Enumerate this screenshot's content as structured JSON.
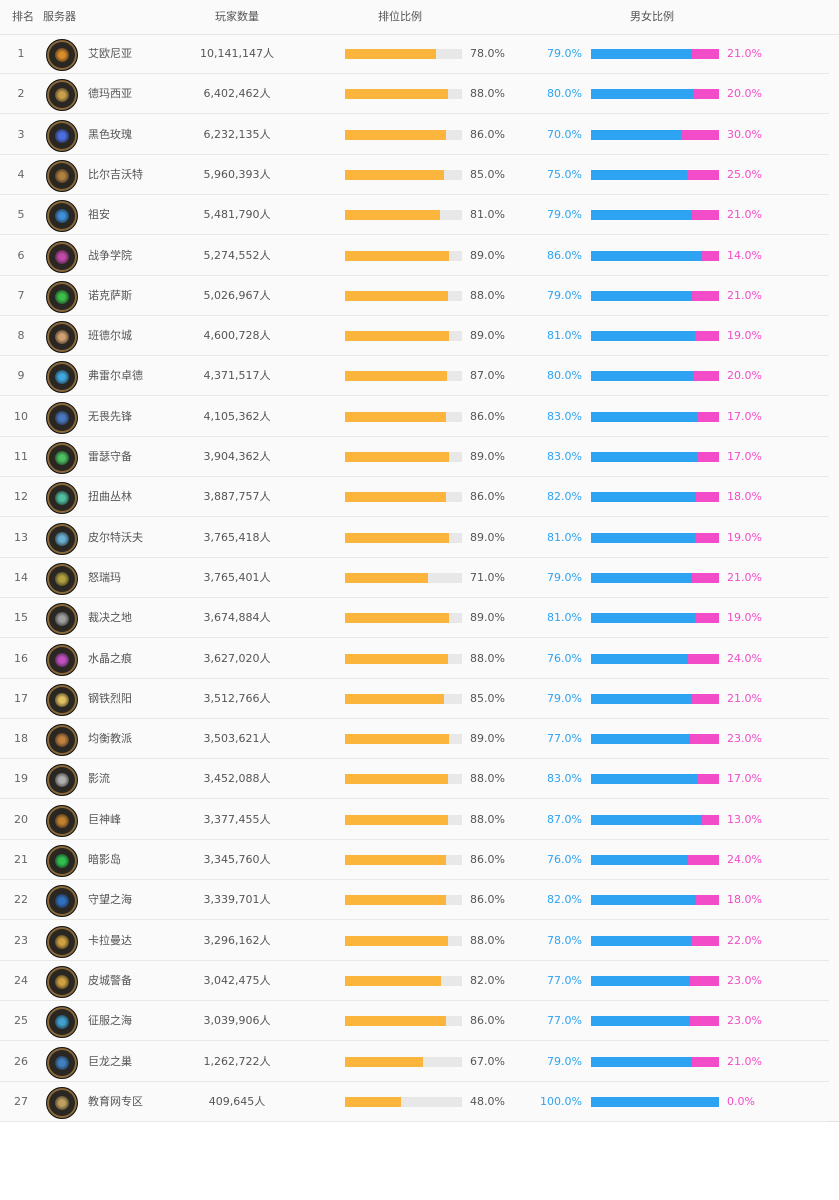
{
  "headers": {
    "rank": "排名",
    "server": "服务器",
    "players": "玩家数量",
    "rank_ratio": "排位比例",
    "gender_ratio": "男女比例"
  },
  "colors": {
    "rank_bar": "#fbb53d",
    "male": "#2ea3f2",
    "female": "#f34cc8"
  },
  "rows": [
    {
      "rank": "1",
      "name": "艾欧尼亚",
      "players": "10,141,147人",
      "rank_pct": "78.0%",
      "male": "79.0%",
      "female": "21.0%"
    },
    {
      "rank": "2",
      "name": "德玛西亚",
      "players": "6,402,462人",
      "rank_pct": "88.0%",
      "male": "80.0%",
      "female": "20.0%"
    },
    {
      "rank": "3",
      "name": "黑色玫瑰",
      "players": "6,232,135人",
      "rank_pct": "86.0%",
      "male": "70.0%",
      "female": "30.0%"
    },
    {
      "rank": "4",
      "name": "比尔吉沃特",
      "players": "5,960,393人",
      "rank_pct": "85.0%",
      "male": "75.0%",
      "female": "25.0%"
    },
    {
      "rank": "5",
      "name": "祖安",
      "players": "5,481,790人",
      "rank_pct": "81.0%",
      "male": "79.0%",
      "female": "21.0%"
    },
    {
      "rank": "6",
      "name": "战争学院",
      "players": "5,274,552人",
      "rank_pct": "89.0%",
      "male": "86.0%",
      "female": "14.0%"
    },
    {
      "rank": "7",
      "name": "诺克萨斯",
      "players": "5,026,967人",
      "rank_pct": "88.0%",
      "male": "79.0%",
      "female": "21.0%"
    },
    {
      "rank": "8",
      "name": "班德尔城",
      "players": "4,600,728人",
      "rank_pct": "89.0%",
      "male": "81.0%",
      "female": "19.0%"
    },
    {
      "rank": "9",
      "name": "弗雷尔卓德",
      "players": "4,371,517人",
      "rank_pct": "87.0%",
      "male": "80.0%",
      "female": "20.0%"
    },
    {
      "rank": "10",
      "name": "无畏先锋",
      "players": "4,105,362人",
      "rank_pct": "86.0%",
      "male": "83.0%",
      "female": "17.0%"
    },
    {
      "rank": "11",
      "name": "雷瑟守备",
      "players": "3,904,362人",
      "rank_pct": "89.0%",
      "male": "83.0%",
      "female": "17.0%"
    },
    {
      "rank": "12",
      "name": "扭曲丛林",
      "players": "3,887,757人",
      "rank_pct": "86.0%",
      "male": "82.0%",
      "female": "18.0%"
    },
    {
      "rank": "13",
      "name": "皮尔特沃夫",
      "players": "3,765,418人",
      "rank_pct": "89.0%",
      "male": "81.0%",
      "female": "19.0%"
    },
    {
      "rank": "14",
      "name": "怒瑞玛",
      "players": "3,765,401人",
      "rank_pct": "71.0%",
      "male": "79.0%",
      "female": "21.0%"
    },
    {
      "rank": "15",
      "name": "裁决之地",
      "players": "3,674,884人",
      "rank_pct": "89.0%",
      "male": "81.0%",
      "female": "19.0%"
    },
    {
      "rank": "16",
      "name": "水晶之痕",
      "players": "3,627,020人",
      "rank_pct": "88.0%",
      "male": "76.0%",
      "female": "24.0%"
    },
    {
      "rank": "17",
      "name": "钢铁烈阳",
      "players": "3,512,766人",
      "rank_pct": "85.0%",
      "male": "79.0%",
      "female": "21.0%"
    },
    {
      "rank": "18",
      "name": "均衡教派",
      "players": "3,503,621人",
      "rank_pct": "89.0%",
      "male": "77.0%",
      "female": "23.0%"
    },
    {
      "rank": "19",
      "name": "影流",
      "players": "3,452,088人",
      "rank_pct": "88.0%",
      "male": "83.0%",
      "female": "17.0%"
    },
    {
      "rank": "20",
      "name": "巨神峰",
      "players": "3,377,455人",
      "rank_pct": "88.0%",
      "male": "87.0%",
      "female": "13.0%"
    },
    {
      "rank": "21",
      "name": "暗影岛",
      "players": "3,345,760人",
      "rank_pct": "86.0%",
      "male": "76.0%",
      "female": "24.0%"
    },
    {
      "rank": "22",
      "name": "守望之海",
      "players": "3,339,701人",
      "rank_pct": "86.0%",
      "male": "82.0%",
      "female": "18.0%"
    },
    {
      "rank": "23",
      "name": "卡拉曼达",
      "players": "3,296,162人",
      "rank_pct": "88.0%",
      "male": "78.0%",
      "female": "22.0%"
    },
    {
      "rank": "24",
      "name": "皮城警备",
      "players": "3,042,475人",
      "rank_pct": "82.0%",
      "male": "77.0%",
      "female": "23.0%"
    },
    {
      "rank": "25",
      "name": "征服之海",
      "players": "3,039,906人",
      "rank_pct": "86.0%",
      "male": "77.0%",
      "female": "23.0%"
    },
    {
      "rank": "26",
      "name": "巨龙之巢",
      "players": "1,262,722人",
      "rank_pct": "67.0%",
      "male": "79.0%",
      "female": "21.0%"
    },
    {
      "rank": "27",
      "name": "教育网专区",
      "players": "409,645人",
      "rank_pct": "48.0%",
      "male": "100.0%",
      "female": "0.0%"
    }
  ]
}
